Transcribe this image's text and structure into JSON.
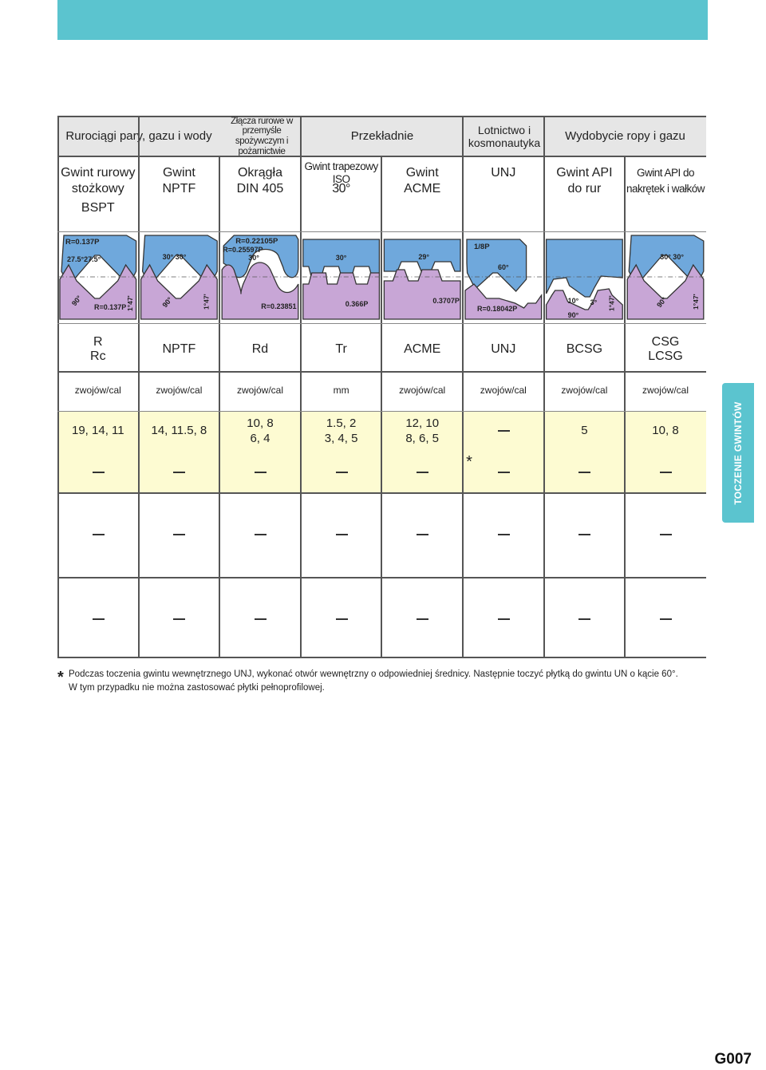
{
  "applications": [
    "Rurociągi pary, gazu i wody",
    "Złącza rurowe w przemyśle spożywczym i pożarnictwie",
    "Przekładnie",
    "Lotnictwo i kosmonautyka",
    "Wydobycie ropy i gazu"
  ],
  "thread_names": [
    {
      "line1": "Gwint rurowy",
      "line2": "stożkowy",
      "line3": "BSPT"
    },
    {
      "line1": "Gwint",
      "line2": "NPTF"
    },
    {
      "line1": "Okrągła",
      "line2": "DIN 405"
    },
    {
      "line1": "Gwint trapezowy ISO",
      "line2": "30°"
    },
    {
      "line1": "Gwint",
      "line2": "ACME"
    },
    {
      "line1": "UNJ",
      "line2": ""
    },
    {
      "line1": "Gwint API",
      "line2": "do rur"
    },
    {
      "line1": "Gwint API do",
      "line2": "nakrętek i wałków"
    }
  ],
  "profiles": [
    {
      "top1": "R=0.137P",
      "top2": "27.5°27.5°",
      "bot1": "90°",
      "bot2": "R=0.137P",
      "bot3": "1°47'"
    },
    {
      "top1": "30°   30°",
      "bot1": "90°",
      "bot3": "1°47'"
    },
    {
      "top1": "R=0.22105P",
      "top2": "R=0.25597P",
      "top3": "30°",
      "bot2": "R=0.23851"
    },
    {
      "top1": "30°",
      "bot2": "0.366P"
    },
    {
      "top1": "29°",
      "bot2": "0.3707P"
    },
    {
      "top1": "1/8P",
      "top3": "60°",
      "bot2": "R=0.18042P"
    },
    {
      "bot1": "10°",
      "bot4": "3°",
      "bot5": "90°",
      "bot3": "1°47'"
    },
    {
      "top1": "30°   30°",
      "bot1": "90°",
      "bot3": "1°47'"
    }
  ],
  "symbols": [
    {
      "line1": "R",
      "line2": "Rc"
    },
    {
      "line1": "NPTF",
      "line2": ""
    },
    {
      "line1": "Rd",
      "line2": ""
    },
    {
      "line1": "Tr",
      "line2": ""
    },
    {
      "line1": "ACME",
      "line2": ""
    },
    {
      "line1": "UNJ",
      "line2": ""
    },
    {
      "line1": "BCSG",
      "line2": ""
    },
    {
      "line1": "CSG",
      "line2": "LCSG"
    }
  ],
  "units": [
    "zwojów/cal",
    "zwojów/cal",
    "zwojów/cal",
    "mm",
    "zwojów/cal",
    "zwojów/cal",
    "zwojów/cal",
    "zwojów/cal"
  ],
  "pitch_row1": [
    {
      "line1": "19, 14, 11",
      "line2": ""
    },
    {
      "line1": "14, 11.5, 8",
      "line2": ""
    },
    {
      "line1": "10, 8",
      "line2": "6, 4"
    },
    {
      "line1": "1.5, 2",
      "line2": "3, 4, 5"
    },
    {
      "line1": "12, 10",
      "line2": "8, 6, 5"
    },
    {
      "line1": "",
      "line2": ""
    },
    {
      "line1": "5",
      "line2": ""
    },
    {
      "line1": "10, 8",
      "line2": ""
    }
  ],
  "asterisk_mark": "*",
  "side_tab": "TOCZENIE GWINTÓW",
  "footnote_mark": "*",
  "footnote_line1": "Podczas toczenia gwintu wewnętrznego UNJ, wykonać otwór wewnętrzny o odpowiedniej średnicy. Następnie toczyć płytką do gwintu UN o kącie 60°.",
  "footnote_line2": "W tym przypadku nie można zastosować płytki pełnoprofilowej.",
  "page_number": "G007"
}
